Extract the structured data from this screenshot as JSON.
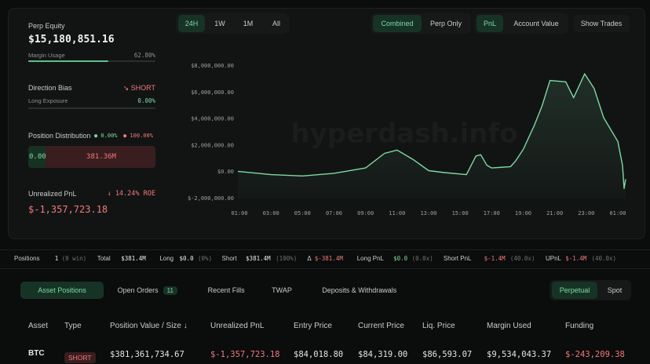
{
  "summary": {
    "perp_equity": {
      "label": "Perp Equity",
      "value": "$15,180,851.16"
    },
    "margin_usage": {
      "label": "Margin Usage",
      "value": 62.8,
      "value_label": "62.80%"
    },
    "direction_bias": {
      "label": "Direction Bias",
      "value": "↘ SHORT"
    },
    "long_exposure": {
      "label": "Long Exposure",
      "value": 0,
      "value_label": "0.00%"
    },
    "position_distribution": {
      "label": "Position Distribution",
      "long": 0,
      "long_label": "● 0.00%",
      "short": 100,
      "short_label": "● 100.00%",
      "long_amount": "0.00",
      "short_amount": "381.36M"
    },
    "unrealized_pnl": {
      "label": "Unrealized PnL",
      "roe": "↓ 14.24% ROE",
      "value": "$-1,357,723.18"
    }
  },
  "controls": {
    "timeframes": [
      "24H",
      "1W",
      "1M",
      "All"
    ],
    "timeframe_active": 0,
    "views": [
      "Combined",
      "Perp Only"
    ],
    "view_active": 0,
    "metrics": [
      "PnL",
      "Account Value"
    ],
    "metric_active": 0,
    "show_trades": "Show Trades"
  },
  "chart_data": {
    "type": "line",
    "watermark": "hyperdash.info",
    "color": "#7ed9a2",
    "x": [
      0.9,
      3.0,
      5.0,
      7.0,
      9.0,
      10.2,
      11.0,
      12.0,
      13.0,
      14.0,
      15.4,
      16.0,
      16.3,
      16.7,
      17.0,
      18.2,
      18.5,
      19.0,
      19.7,
      20.2,
      20.7,
      21.7,
      22.2,
      22.9,
      23.5,
      24.1,
      25.0,
      25.3,
      25.4,
      25.5
    ],
    "values": [
      50000,
      -200000,
      -300000,
      -100000,
      300000,
      1400000,
      1650000,
      950000,
      100000,
      -50000,
      -200000,
      1200000,
      1300000,
      500000,
      300000,
      400000,
      800000,
      1700000,
      3500000,
      5000000,
      6900000,
      6800000,
      5600000,
      7400000,
      6300000,
      4100000,
      2300000,
      500000,
      -1250000,
      -550000
    ],
    "xlim": [
      0.9,
      25.5
    ],
    "xticks": [
      {
        "value": 1,
        "label": "01:00"
      },
      {
        "value": 3,
        "label": "03:00"
      },
      {
        "value": 5,
        "label": "05:00"
      },
      {
        "value": 7,
        "label": "07:00"
      },
      {
        "value": 9,
        "label": "09:00"
      },
      {
        "value": 11,
        "label": "11:00"
      },
      {
        "value": 13,
        "label": "13:00"
      },
      {
        "value": 15,
        "label": "15:00"
      },
      {
        "value": 17,
        "label": "17:00"
      },
      {
        "value": 19,
        "label": "19:00"
      },
      {
        "value": 21,
        "label": "21:00"
      },
      {
        "value": 23,
        "label": "23:00"
      },
      {
        "value": 25,
        "label": "01:00"
      }
    ],
    "ylim": [
      -2000000,
      8000000
    ],
    "yticks": [
      {
        "value": 8000000,
        "label": "$8,000,000.00"
      },
      {
        "value": 6000000,
        "label": "$6,000,000.00"
      },
      {
        "value": 4000000,
        "label": "$4,000,000.00"
      },
      {
        "value": 2000000,
        "label": "$2,000,000.00"
      },
      {
        "value": 0,
        "label": "$0.00"
      },
      {
        "value": -2000000,
        "label": "$-2,000,000.00"
      }
    ]
  },
  "stats": [
    {
      "label": "Positions",
      "value": "1",
      "note": "(0 win)"
    },
    {
      "label": "Total",
      "value": "$381.4M"
    },
    {
      "label": "Long",
      "value": "$0.0",
      "note": "(0%)"
    },
    {
      "label": "Short",
      "value": "$381.4M",
      "note": "(100%)"
    },
    {
      "label": "Δ",
      "value": "$-381.4M",
      "neg": true
    },
    {
      "label": "Long PnL",
      "value": "$0.0",
      "note": "(0.0x)",
      "pos": true
    },
    {
      "label": "Short PnL",
      "value": "$-1.4M",
      "note": "(40.0x)",
      "neg": true
    },
    {
      "label": "UPnL",
      "value": "$-1.4M",
      "note": "(40.0x)",
      "neg": true
    }
  ],
  "tabs": [
    {
      "label": "Asset Positions"
    },
    {
      "label": "Open Orders",
      "badge": "11"
    },
    {
      "label": "Recent Fills"
    },
    {
      "label": "TWAP"
    },
    {
      "label": "Deposits & Withdrawals"
    }
  ],
  "tab_active": 0,
  "market_tabs": [
    "Perpetual",
    "Spot"
  ],
  "market_active": 0,
  "table": {
    "headers": [
      "Asset",
      "Type",
      "Position Value / Size ↓",
      "Unrealized PnL",
      "Entry Price",
      "Current Price",
      "Liq. Price",
      "Margin Used",
      "Funding"
    ],
    "rows": [
      [
        "BTC",
        "SHORT",
        "$381,361,734.67",
        "$-1,357,723.18",
        "$84,018.80",
        "$84,319.00",
        "$86,593.07",
        "$9,534,043.37",
        "$-243,209.38"
      ]
    ]
  }
}
